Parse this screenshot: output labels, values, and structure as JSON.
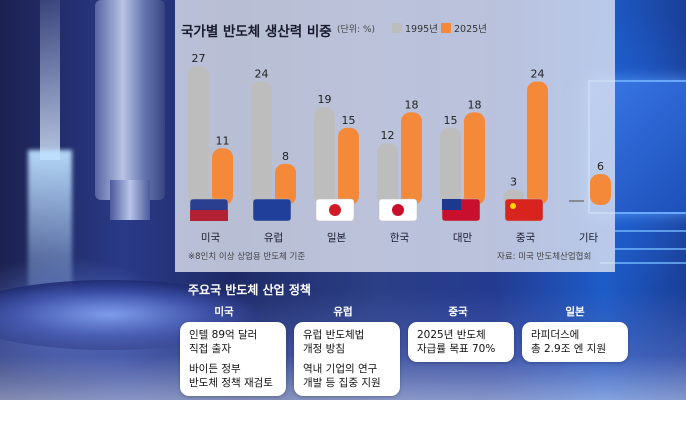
{
  "chart_data": {
    "type": "bar",
    "title": "국가별 반도체 생산력 비중",
    "unit": "(단위: %)",
    "categories": [
      "미국",
      "유럽",
      "일본",
      "한국",
      "대만",
      "중국",
      "기타"
    ],
    "series": [
      {
        "name": "1995년",
        "color": "#bdbdbd",
        "values": [
          27,
          24,
          19,
          12,
          15,
          3,
          null
        ]
      },
      {
        "name": "2025년",
        "color": "#f5893a",
        "values": [
          11,
          8,
          15,
          18,
          18,
          24,
          6
        ]
      }
    ],
    "ylim": [
      0,
      30
    ],
    "note": "※8인치 이상 상업용 반도체 기준",
    "source": "자료: 미국 반도체산업협회"
  },
  "policy": {
    "title": "주요국 반도체 산업 정책",
    "columns": [
      {
        "country": "미국",
        "items": [
          "인텔 89억 달러\n직접 출자",
          "바이든 정부\n반도체 정책 재검토"
        ]
      },
      {
        "country": "유럽",
        "items": [
          "유럽 반도체법\n개정 방침",
          "역내 기업의 연구\n개발 등 집중 지원"
        ]
      },
      {
        "country": "중국",
        "items": [
          "2025년 반도체\n자급률 목표 70%"
        ]
      },
      {
        "country": "일본",
        "items": [
          "라피더스에\n총 2.9조 엔 지원"
        ]
      }
    ]
  }
}
